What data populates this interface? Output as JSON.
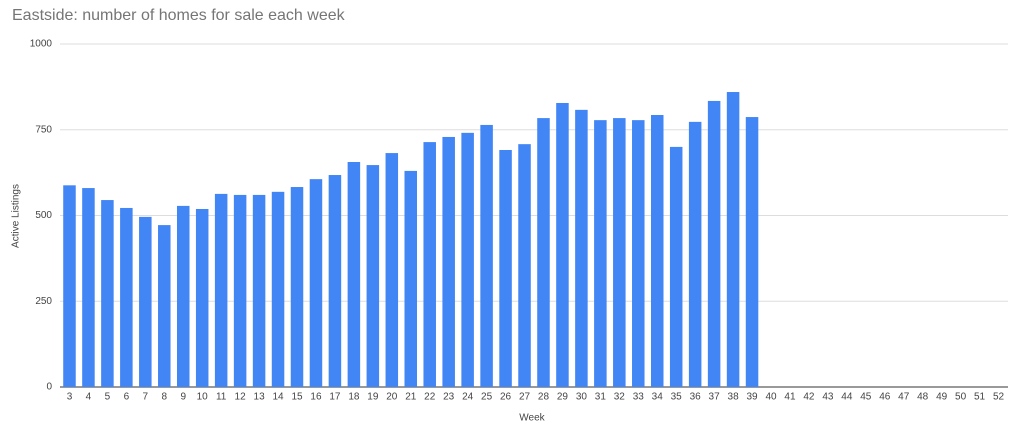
{
  "chart_data": {
    "type": "bar",
    "title": "Eastside: number of homes for sale each week",
    "x_label": "Week",
    "y_label": "Active Listings",
    "categories": [
      "3",
      "4",
      "5",
      "6",
      "7",
      "8",
      "9",
      "10",
      "11",
      "12",
      "13",
      "14",
      "15",
      "16",
      "17",
      "18",
      "19",
      "20",
      "21",
      "22",
      "23",
      "24",
      "25",
      "26",
      "27",
      "28",
      "29",
      "30",
      "31",
      "32",
      "33",
      "34",
      "35",
      "36",
      "37",
      "38",
      "39",
      "40",
      "41",
      "42",
      "43",
      "44",
      "45",
      "46",
      "47",
      "48",
      "49",
      "50",
      "51",
      "52"
    ],
    "values": [
      588,
      580,
      545,
      522,
      496,
      472,
      528,
      519,
      563,
      560,
      560,
      569,
      583,
      606,
      618,
      656,
      647,
      682,
      630,
      714,
      729,
      741,
      764,
      691,
      708,
      784,
      828,
      808,
      778,
      784,
      778,
      793,
      700,
      773,
      834,
      860,
      787,
      null,
      null,
      null,
      null,
      null,
      null,
      null,
      null,
      null,
      null,
      null,
      null,
      null
    ],
    "color": "#4285f4",
    "ylim": [
      0,
      1000
    ],
    "yticks": [
      0,
      250,
      500,
      750,
      1000
    ],
    "grid": true
  }
}
